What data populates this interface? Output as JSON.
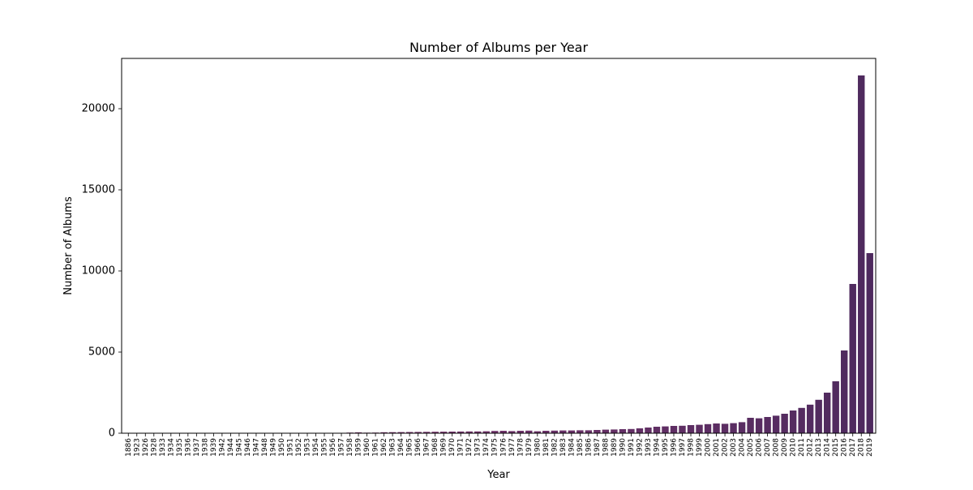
{
  "chart_data": {
    "type": "bar",
    "title": "Number of Albums per Year",
    "xlabel": "Year",
    "ylabel": "Number of Albums",
    "ylim": [
      0,
      23100
    ],
    "yticks": [
      0,
      5000,
      10000,
      15000,
      20000
    ],
    "grid": false,
    "legend": "none",
    "categories": [
      "1886",
      "1923",
      "1926",
      "1928",
      "1933",
      "1934",
      "1935",
      "1936",
      "1937",
      "1938",
      "1939",
      "1942",
      "1944",
      "1945",
      "1946",
      "1947",
      "1948",
      "1949",
      "1950",
      "1951",
      "1952",
      "1953",
      "1954",
      "1955",
      "1956",
      "1957",
      "1958",
      "1959",
      "1960",
      "1961",
      "1962",
      "1963",
      "1964",
      "1965",
      "1966",
      "1967",
      "1968",
      "1969",
      "1970",
      "1971",
      "1972",
      "1973",
      "1974",
      "1975",
      "1976",
      "1977",
      "1978",
      "1979",
      "1980",
      "1981",
      "1982",
      "1983",
      "1984",
      "1985",
      "1986",
      "1987",
      "1988",
      "1989",
      "1990",
      "1991",
      "1992",
      "1993",
      "1994",
      "1995",
      "1996",
      "1997",
      "1998",
      "1999",
      "2000",
      "2001",
      "2002",
      "2003",
      "2004",
      "2005",
      "2006",
      "2007",
      "2008",
      "2009",
      "2010",
      "2011",
      "2012",
      "2013",
      "2014",
      "2015",
      "2016",
      "2017",
      "2018",
      "2019"
    ],
    "values": [
      1,
      1,
      1,
      1,
      1,
      1,
      1,
      1,
      1,
      2,
      1,
      1,
      1,
      2,
      3,
      2,
      3,
      3,
      3,
      4,
      4,
      5,
      6,
      8,
      10,
      15,
      40,
      55,
      35,
      40,
      60,
      65,
      70,
      75,
      80,
      85,
      90,
      95,
      100,
      105,
      110,
      110,
      120,
      140,
      150,
      130,
      150,
      160,
      120,
      150,
      160,
      170,
      170,
      180,
      180,
      200,
      220,
      230,
      250,
      260,
      300,
      350,
      400,
      420,
      450,
      460,
      500,
      520,
      560,
      600,
      580,
      620,
      680,
      950,
      920,
      1000,
      1080,
      1200,
      1400,
      1560,
      1760,
      2060,
      2500,
      3200,
      5100,
      9200,
      22050,
      11100
    ],
    "color_light": "#8e3a73",
    "color_dark": "#4e2a5e"
  }
}
